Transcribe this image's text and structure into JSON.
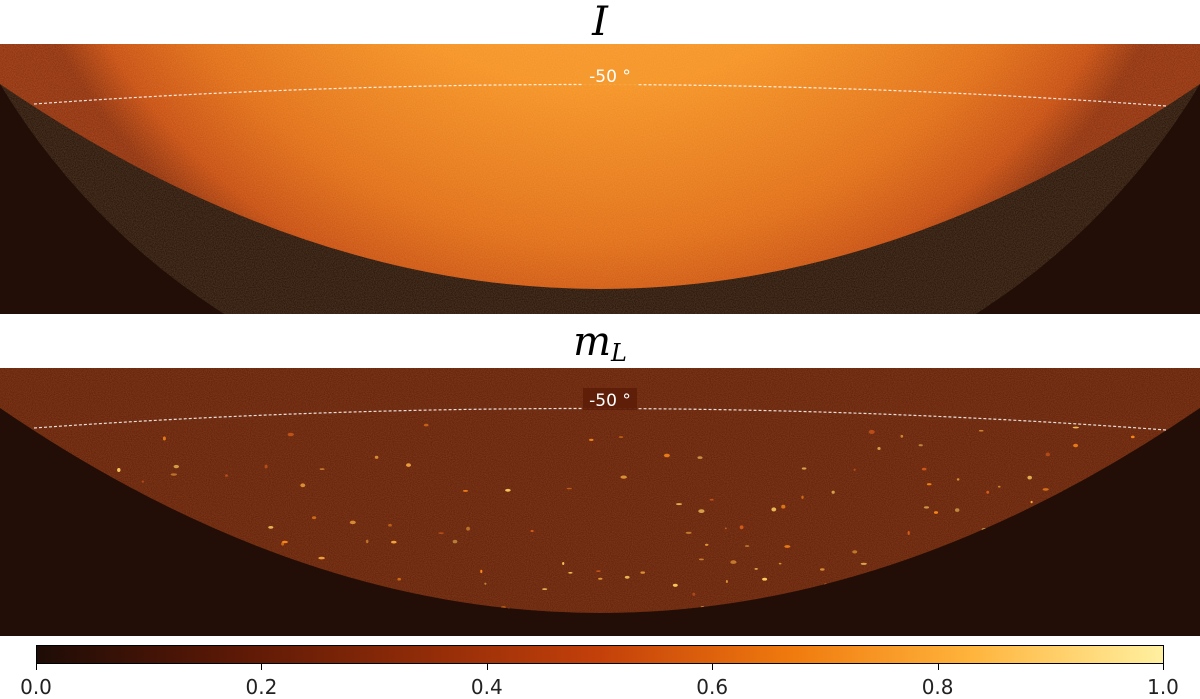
{
  "panels": [
    {
      "title_main": "I",
      "title_sub": "",
      "latitude_label": "-50 °",
      "colormap": "afmhot",
      "mean_level": 0.65
    },
    {
      "title_main": "m",
      "title_sub": "L",
      "latitude_label": "-50 °",
      "colormap": "afmhot",
      "mean_level": 0.32
    }
  ],
  "colorbar": {
    "min": 0.0,
    "max": 1.0,
    "ticks": [
      "0.0",
      "0.2",
      "0.4",
      "0.6",
      "0.8",
      "1.0"
    ],
    "colors": [
      "#1e0c06",
      "#5a1806",
      "#8c2a08",
      "#c4400a",
      "#f07a0e",
      "#ffb43c",
      "#fff0a0"
    ]
  },
  "colors": {
    "background_outside_disk": "#220e06",
    "latitude_line": "#ffffff"
  }
}
